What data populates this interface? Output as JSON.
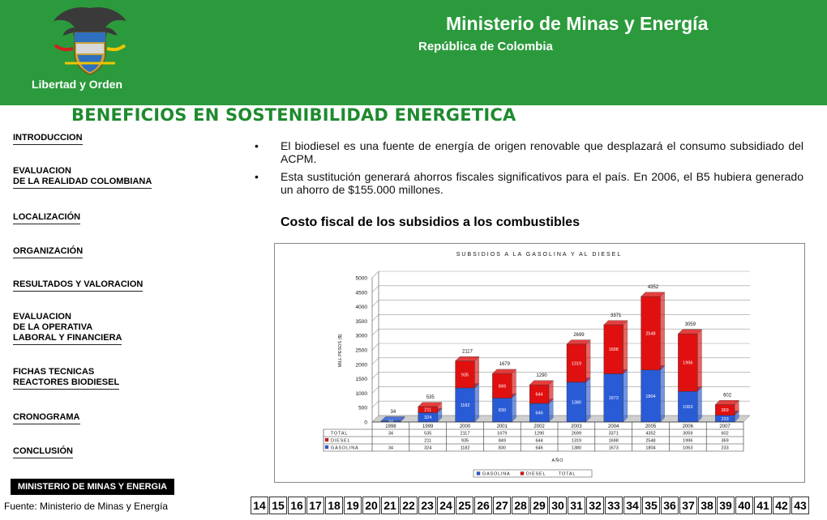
{
  "header": {
    "ministry": "Ministerio de Minas y Energía",
    "republic": "República de Colombia",
    "motto": "Libertad y Orden"
  },
  "page_title": "BENEFICIOS EN SOSTENIBILIDAD ENERGETICA",
  "nav": [
    {
      "lines": [
        "INTRODUCCION"
      ]
    },
    {
      "lines": [
        "EVALUACION",
        "DE LA REALIDAD COLOMBIANA"
      ]
    },
    {
      "lines": [
        "LOCALIZACIÓN"
      ]
    },
    {
      "lines": [
        "ORGANIZACIÓN"
      ]
    },
    {
      "lines": [
        "RESULTADOS Y VALORACION"
      ]
    },
    {
      "lines": [
        "EVALUACION",
        "DE LA OPERATIVA",
        "LABORAL Y FINANCIERA"
      ]
    },
    {
      "lines": [
        "FICHAS TECNICAS",
        "REACTORES BIODIESEL"
      ]
    },
    {
      "lines": [
        "CRONOGRAMA"
      ]
    },
    {
      "lines": [
        "CONCLUSIÓN"
      ]
    }
  ],
  "footer": {
    "ministry_box": "MINISTERIO DE MINAS Y ENERGIA",
    "source": "Fuente: Ministerio de Minas y Energía"
  },
  "bullets": [
    "El biodiesel es una fuente de energía de origen renovable que desplazará el consumo subsidiado del ACPM.",
    "Esta sustitución generará ahorros fiscales significativos para el país. En 2006, el B5 hubiera generado un ahorro de $155.000 millones."
  ],
  "chart_heading": "Costo fiscal de los subsidios a los combustibles",
  "pages": [
    "14",
    "15",
    "16",
    "17",
    "18",
    "19",
    "20",
    "21",
    "22",
    "23",
    "24",
    "25",
    "26",
    "27",
    "28",
    "29",
    "30",
    "31",
    "32",
    "33",
    "34",
    "35",
    "36",
    "37",
    "38",
    "39",
    "40",
    "41",
    "42",
    "43"
  ],
  "colors": {
    "header_green": "#2b9a3c",
    "title_green": "#1e8a2e",
    "gasolina": "#2a5bd7",
    "diesel": "#e01010"
  },
  "chart_data": {
    "type": "bar",
    "stacked": true,
    "title": "SUBSIDIOS A LA GASOLINA Y AL DIESEL",
    "xlabel": "AÑO",
    "ylabel": "MILL PESOS ($)",
    "ylim": [
      0,
      5000
    ],
    "yticks": [
      0,
      500,
      1000,
      1500,
      2000,
      2500,
      3000,
      3500,
      4000,
      4500,
      5000
    ],
    "grid": true,
    "legend_position": "bottom",
    "legend": [
      "GASOLINA",
      "DIESEL",
      "TOTAL"
    ],
    "categories": [
      "1998",
      "1999",
      "2000",
      "2001",
      "2002",
      "2003",
      "2004",
      "2005",
      "2006",
      "2007"
    ],
    "series": [
      {
        "name": "GASOLINA",
        "values": [
          34,
          324,
          1182,
          830,
          646,
          1380,
          1673,
          1804,
          1063,
          233
        ]
      },
      {
        "name": "DIESEL",
        "values": [
          null,
          211,
          935,
          849,
          644,
          1319,
          1698,
          2548,
          1996,
          369
        ]
      }
    ],
    "table": {
      "row_labels": [
        "TOTAL",
        "DIESEL",
        "GASOLINA"
      ],
      "rows": [
        [
          "34",
          "535",
          "2117",
          "1679",
          "1290",
          "2699",
          "3371",
          "4352",
          "3059",
          "602"
        ],
        [
          "",
          "211",
          "935",
          "849",
          "644",
          "1319",
          "1698",
          "2548",
          "1996",
          "369"
        ],
        [
          "34",
          "324",
          "1182",
          "830",
          "646",
          "1380",
          "1673",
          "1804",
          "1063",
          "233"
        ]
      ]
    },
    "totals": [
      "34",
      "535",
      "2117",
      "1679",
      "1290",
      "2699",
      "3371",
      "4352",
      "3059",
      "602"
    ],
    "gasolina_labels": [
      "34",
      "324",
      "1182",
      "830",
      "646",
      "1380",
      "1673",
      "1804",
      "1063",
      "233"
    ],
    "diesel_labels": [
      "",
      "211",
      "935",
      "849",
      "644",
      "1319",
      "1698",
      "2548",
      "1996",
      "369"
    ]
  }
}
